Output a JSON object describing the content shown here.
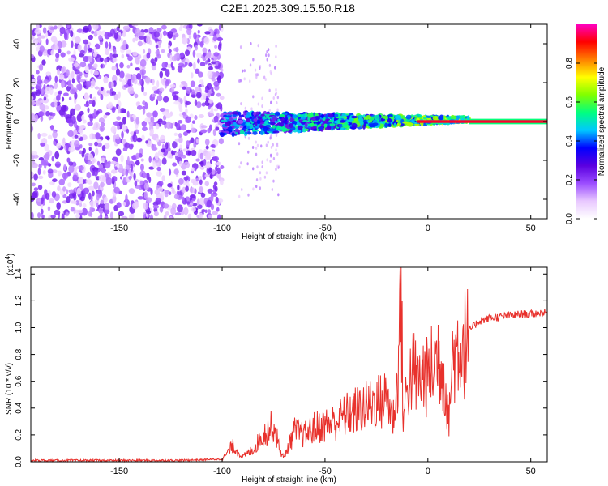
{
  "figure_title": "C2E1.2025.309.15.50.R18",
  "chart_data": [
    {
      "type": "heatmap",
      "title": "C2E1.2025.309.15.50.R18",
      "xlabel": "Height of straight line (km)",
      "ylabel": "Frequency (Hz)",
      "xlim": [
        -193,
        58
      ],
      "ylim": [
        -50,
        50
      ],
      "x_ticks": [
        -150,
        -100,
        -50,
        0,
        50
      ],
      "y_ticks": [
        -40,
        -20,
        0,
        20,
        40
      ],
      "colorbar": {
        "label": "Normalized spectral amplitude",
        "range": [
          0,
          1
        ],
        "ticks": [
          0.0,
          0.2,
          0.4,
          0.6,
          0.8
        ],
        "tick_labels": [
          "0.0",
          "0.2",
          "0.4",
          "0.6",
          "0.8"
        ],
        "colormap": [
          "#ffffff",
          "#e8c8ff",
          "#9b4dff",
          "#5a00e0",
          "#0000ff",
          "#00c8ff",
          "#00ff80",
          "#80ff00",
          "#ffff00",
          "#ff8000",
          "#ff0000",
          "#ff00c0"
        ]
      },
      "description_regions": [
        {
          "x_range": [
            -193,
            -100
          ],
          "freq_range": [
            -50,
            50
          ],
          "amplitude": [
            0.05,
            0.25
          ]
        },
        {
          "x_range": [
            -100,
            20
          ],
          "freq_range": [
            -5,
            8
          ],
          "amplitude": [
            0.15,
            0.7
          ]
        },
        {
          "x_range": [
            20,
            58
          ],
          "freq_range": [
            -1,
            1
          ],
          "amplitude": [
            0.9,
            1.0
          ]
        }
      ]
    },
    {
      "type": "line",
      "xlabel": "Height of straight line (km)",
      "ylabel": "SNR (10 * v/v)",
      "y_multiplier_label": "(x10",
      "y_multiplier_exp": "4",
      "y_multiplier_close": ")",
      "xlim": [
        -193,
        58
      ],
      "ylim": [
        0,
        1.45
      ],
      "x_ticks": [
        -150,
        -100,
        -50,
        0,
        50
      ],
      "y_ticks": [
        0.0,
        0.2,
        0.4,
        0.6,
        0.8,
        1.0,
        1.2,
        1.4
      ],
      "y_tick_labels": [
        "0.0",
        "0.2",
        "0.4",
        "0.6",
        "0.8",
        "1.0",
        "1.2",
        "1.4"
      ],
      "color": "#e8312c",
      "series": [
        {
          "x": [
            -193,
            -180,
            -160,
            -140,
            -120,
            -100,
            -97,
            -95,
            -90,
            -85,
            -80,
            -75,
            -72,
            -70,
            -65,
            -60,
            -55,
            -50,
            -45,
            -40,
            -35,
            -30,
            -25,
            -22,
            -20,
            -17,
            -15,
            -13,
            -12,
            -10,
            -7,
            -5,
            -2,
            0,
            3,
            5,
            8,
            10,
            12,
            15,
            18,
            20,
            25,
            30,
            35,
            40,
            45,
            50,
            55,
            58
          ],
          "y": [
            0.01,
            0.01,
            0.01,
            0.01,
            0.01,
            0.02,
            0.08,
            0.13,
            0.04,
            0.1,
            0.22,
            0.3,
            0.1,
            0.03,
            0.25,
            0.22,
            0.28,
            0.3,
            0.33,
            0.38,
            0.42,
            0.45,
            0.5,
            0.48,
            0.55,
            0.35,
            0.6,
            1.45,
            0.35,
            0.62,
            0.75,
            0.65,
            0.72,
            0.68,
            0.82,
            0.88,
            0.72,
            0.32,
            0.85,
            0.95,
            0.98,
            0.98,
            1.05,
            1.07,
            1.08,
            1.09,
            1.1,
            1.1,
            1.11,
            1.11
          ]
        }
      ]
    }
  ]
}
